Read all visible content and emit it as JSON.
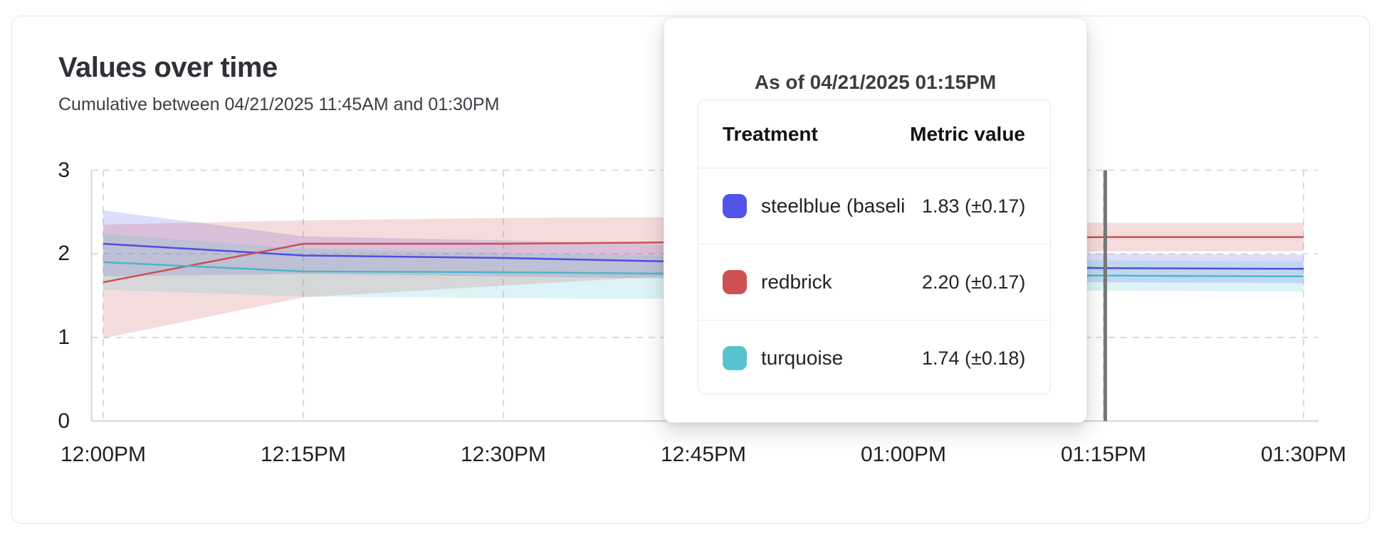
{
  "header": {
    "title": "Values over time",
    "subtitle": "Cumulative between 04/21/2025 11:45AM and 01:30PM"
  },
  "chart_data": {
    "type": "line",
    "title": "Values over time",
    "subtitle": "Cumulative between 04/21/2025 11:45AM and 01:30PM",
    "x_tick_labels": [
      "12:00PM",
      "12:15PM",
      "12:30PM",
      "12:45PM",
      "01:00PM",
      "01:15PM",
      "01:30PM"
    ],
    "y_tick_labels": [
      "0",
      "1",
      "2",
      "3"
    ],
    "ylim": [
      0,
      3
    ],
    "grid": "dashed, horizontal and vertical",
    "legend_position": "none (legend shown in hover tooltip)",
    "marker": {
      "x_label": "01:15PM",
      "color": "#787878"
    },
    "colors": {
      "grid": "#dbdbdf",
      "axis": "#d4d4d8",
      "tick_text": "#1f2023"
    },
    "series": [
      {
        "name": "steelblue (baseline)",
        "line_color": "#4d4fe0",
        "swatch_color": "#5253e8",
        "values": [
          2.12,
          1.98,
          1.95,
          1.9,
          1.86,
          1.83,
          1.82
        ],
        "lower": [
          1.73,
          1.76,
          1.73,
          1.7,
          1.68,
          1.66,
          1.65
        ],
        "upper": [
          2.52,
          2.21,
          2.16,
          2.1,
          2.04,
          2.0,
          1.99
        ]
      },
      {
        "name": "redbrick",
        "line_color": "#cc4f55",
        "swatch_color": "#cd5152",
        "values": [
          1.66,
          2.12,
          2.12,
          2.14,
          2.17,
          2.2,
          2.2
        ],
        "lower": [
          0.99,
          1.48,
          1.62,
          1.76,
          1.9,
          2.03,
          2.03
        ],
        "upper": [
          2.35,
          2.4,
          2.43,
          2.44,
          2.42,
          2.37,
          2.37
        ]
      },
      {
        "name": "turquoise",
        "line_color": "#49b8c8",
        "swatch_color": "#57c4cd",
        "values": [
          1.9,
          1.79,
          1.78,
          1.76,
          1.75,
          1.74,
          1.73
        ],
        "lower": [
          1.57,
          1.49,
          1.47,
          1.46,
          1.5,
          1.56,
          1.55
        ],
        "upper": [
          2.24,
          2.06,
          2.01,
          1.97,
          1.95,
          1.92,
          1.91
        ]
      }
    ]
  },
  "tooltip": {
    "title": "As of 04/21/2025 01:15PM",
    "columns": [
      "Treatment",
      "Metric value"
    ],
    "rows": [
      {
        "label": "steelblue  (baseli",
        "swatch_color": "#5253e8",
        "value": "1.83 (±0.17)"
      },
      {
        "label": "redbrick",
        "swatch_color": "#cd5152",
        "value": "2.20 (±0.17)"
      },
      {
        "label": "turquoise",
        "swatch_color": "#57c4cd",
        "value": "1.74 (±0.18)"
      }
    ]
  }
}
